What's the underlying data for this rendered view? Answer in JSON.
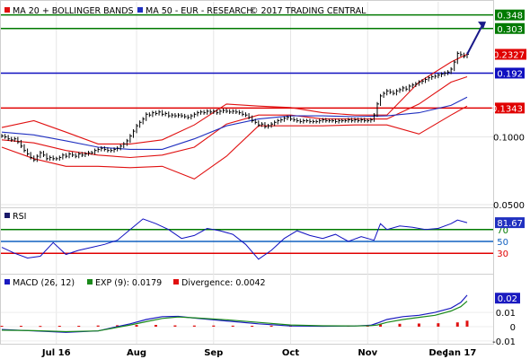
{
  "legend": {
    "main_ma20": "MA 20 + BOLLINGER BANDS",
    "main_ma50": "MA 50 - EUR - RESEARCH",
    "copyright": "© 2017 TRADING CENTRAL",
    "rsi": "RSI",
    "macd": "MACD (26, 12)",
    "exp": "EXP (9): 0.0179",
    "divergence": "Divergence: 0.0042"
  },
  "colors": {
    "price": "#000000",
    "ma20_bands": "#e01010",
    "ma50": "#2030c0",
    "resistance": "#007a00",
    "support_blue": "#1010c0",
    "support_red": "#e00000",
    "price_badge": "#e00000",
    "arrow": "#1a1a8a",
    "rsi_line": "#1010c0",
    "rsi_70": "#007a00",
    "rsi_50": "#1060c0",
    "rsi_30": "#e00000",
    "rsi_badge": "#2030c0",
    "macd_line": "#1a1ac0",
    "exp_line": "#1a8a1a",
    "divergence_bars": "#e01010"
  },
  "chart_data": [
    {
      "type": "line",
      "panel": "price",
      "scale": "log",
      "ylim": [
        0.05,
        0.37
      ],
      "x_ticks": [
        "Jul 16",
        "Aug",
        "Sep",
        "Oct",
        "Nov",
        "Dec",
        "Jan 17"
      ],
      "y_ticks": [
        {
          "value": 0.05,
          "label": "0.0500"
        },
        {
          "value": 0.1,
          "label": "0.1000"
        }
      ],
      "levels": [
        {
          "value": 0.348,
          "label": "0.348",
          "kind": "resistance"
        },
        {
          "value": 0.303,
          "label": "0.303",
          "kind": "resistance"
        },
        {
          "value": 0.192,
          "label": "0.192",
          "kind": "support"
        },
        {
          "value": 0.1343,
          "label": "0.1343",
          "kind": "support"
        }
      ],
      "last_price": {
        "value": 0.2327,
        "label": "0.2327"
      },
      "series": [
        {
          "name": "MA 20 + BOLLINGER BANDS",
          "role": "ma20",
          "x": [
            0,
            10,
            20,
            30,
            40,
            50,
            60,
            70,
            80,
            90,
            100,
            110,
            120,
            130,
            140,
            145
          ],
          "values": [
            0.097,
            0.094,
            0.087,
            0.083,
            0.081,
            0.083,
            0.09,
            0.114,
            0.125,
            0.125,
            0.12,
            0.12,
            0.12,
            0.14,
            0.175,
            0.185
          ]
        },
        {
          "name": "upper band",
          "role": "band",
          "x": [
            0,
            10,
            20,
            30,
            40,
            50,
            60,
            70,
            80,
            90,
            100,
            110,
            120,
            130,
            140,
            145
          ],
          "values": [
            0.11,
            0.118,
            0.105,
            0.093,
            0.093,
            0.097,
            0.113,
            0.14,
            0.137,
            0.135,
            0.128,
            0.125,
            0.125,
            0.175,
            0.215,
            0.233
          ]
        },
        {
          "name": "lower band",
          "role": "band",
          "x": [
            0,
            10,
            20,
            30,
            40,
            50,
            60,
            70,
            80,
            90,
            100,
            110,
            120,
            130,
            140,
            145
          ],
          "values": [
            0.09,
            0.08,
            0.074,
            0.074,
            0.073,
            0.074,
            0.065,
            0.082,
            0.112,
            0.112,
            0.112,
            0.113,
            0.113,
            0.103,
            0.125,
            0.137
          ]
        },
        {
          "name": "MA 50",
          "role": "ma50",
          "x": [
            0,
            10,
            20,
            30,
            40,
            50,
            60,
            70,
            80,
            90,
            100,
            110,
            120,
            130,
            140,
            145
          ],
          "values": [
            0.105,
            0.102,
            0.096,
            0.09,
            0.088,
            0.088,
            0.098,
            0.112,
            0.12,
            0.124,
            0.124,
            0.123,
            0.124,
            0.128,
            0.138,
            0.15
          ]
        }
      ],
      "candles": [
        [
          0,
          0.101
        ],
        [
          1,
          0.1
        ],
        [
          2,
          0.098
        ],
        [
          3,
          0.097
        ],
        [
          4,
          0.098
        ],
        [
          5,
          0.095
        ],
        [
          6,
          0.091
        ],
        [
          7,
          0.087
        ],
        [
          8,
          0.084
        ],
        [
          9,
          0.081
        ],
        [
          10,
          0.079
        ],
        [
          11,
          0.082
        ],
        [
          12,
          0.085
        ],
        [
          13,
          0.083
        ],
        [
          14,
          0.08
        ],
        [
          15,
          0.081
        ],
        [
          16,
          0.08
        ],
        [
          17,
          0.08
        ],
        [
          18,
          0.081
        ],
        [
          19,
          0.083
        ],
        [
          20,
          0.082
        ],
        [
          21,
          0.084
        ],
        [
          22,
          0.083
        ],
        [
          23,
          0.082
        ],
        [
          24,
          0.084
        ],
        [
          25,
          0.083
        ],
        [
          26,
          0.084
        ],
        [
          27,
          0.085
        ],
        [
          28,
          0.085
        ],
        [
          29,
          0.087
        ],
        [
          30,
          0.088
        ],
        [
          31,
          0.089
        ],
        [
          32,
          0.088
        ],
        [
          33,
          0.087
        ],
        [
          34,
          0.087
        ],
        [
          35,
          0.088
        ],
        [
          36,
          0.089
        ],
        [
          37,
          0.091
        ],
        [
          38,
          0.093
        ],
        [
          39,
          0.096
        ],
        [
          40,
          0.101
        ],
        [
          41,
          0.106
        ],
        [
          42,
          0.112
        ],
        [
          43,
          0.116
        ],
        [
          44,
          0.12
        ],
        [
          45,
          0.126
        ],
        [
          46,
          0.125
        ],
        [
          47,
          0.128
        ],
        [
          48,
          0.127
        ],
        [
          49,
          0.129
        ],
        [
          50,
          0.126
        ],
        [
          51,
          0.127
        ],
        [
          52,
          0.124
        ],
        [
          53,
          0.125
        ],
        [
          54,
          0.124
        ],
        [
          55,
          0.125
        ],
        [
          56,
          0.124
        ],
        [
          57,
          0.123
        ],
        [
          58,
          0.122
        ],
        [
          59,
          0.124
        ],
        [
          60,
          0.126
        ],
        [
          61,
          0.128
        ],
        [
          62,
          0.129
        ],
        [
          63,
          0.128
        ],
        [
          64,
          0.13
        ],
        [
          65,
          0.129
        ],
        [
          66,
          0.13
        ],
        [
          67,
          0.128
        ],
        [
          68,
          0.13
        ],
        [
          69,
          0.131
        ],
        [
          70,
          0.13
        ],
        [
          71,
          0.129
        ],
        [
          72,
          0.13
        ],
        [
          73,
          0.129
        ],
        [
          74,
          0.128
        ],
        [
          75,
          0.126
        ],
        [
          76,
          0.125
        ],
        [
          77,
          0.122
        ],
        [
          78,
          0.118
        ],
        [
          79,
          0.116
        ],
        [
          80,
          0.113
        ],
        [
          81,
          0.114
        ],
        [
          82,
          0.111
        ],
        [
          83,
          0.112
        ],
        [
          84,
          0.114
        ],
        [
          85,
          0.116
        ],
        [
          86,
          0.118
        ],
        [
          87,
          0.119
        ],
        [
          88,
          0.121
        ],
        [
          89,
          0.122
        ],
        [
          90,
          0.12
        ],
        [
          91,
          0.119
        ],
        [
          92,
          0.118
        ],
        [
          93,
          0.117
        ],
        [
          94,
          0.118
        ],
        [
          95,
          0.118
        ],
        [
          96,
          0.117
        ],
        [
          97,
          0.117
        ],
        [
          98,
          0.117
        ],
        [
          99,
          0.118
        ],
        [
          100,
          0.119
        ],
        [
          101,
          0.118
        ],
        [
          102,
          0.118
        ],
        [
          103,
          0.118
        ],
        [
          104,
          0.117
        ],
        [
          105,
          0.118
        ],
        [
          106,
          0.118
        ],
        [
          107,
          0.118
        ],
        [
          108,
          0.119
        ],
        [
          109,
          0.118
        ],
        [
          110,
          0.119
        ],
        [
          111,
          0.118
        ],
        [
          112,
          0.119
        ],
        [
          113,
          0.118
        ],
        [
          114,
          0.118
        ],
        [
          115,
          0.119
        ],
        [
          116,
          0.125
        ],
        [
          117,
          0.14
        ],
        [
          118,
          0.152
        ],
        [
          119,
          0.156
        ],
        [
          120,
          0.16
        ],
        [
          121,
          0.158
        ],
        [
          122,
          0.156
        ],
        [
          123,
          0.16
        ],
        [
          124,
          0.162
        ],
        [
          125,
          0.165
        ],
        [
          126,
          0.163
        ],
        [
          127,
          0.168
        ],
        [
          128,
          0.17
        ],
        [
          129,
          0.172
        ],
        [
          130,
          0.175
        ],
        [
          131,
          0.177
        ],
        [
          132,
          0.18
        ],
        [
          133,
          0.183
        ],
        [
          134,
          0.185
        ],
        [
          135,
          0.186
        ],
        [
          136,
          0.188
        ],
        [
          137,
          0.19
        ],
        [
          138,
          0.192
        ],
        [
          139,
          0.194
        ],
        [
          140,
          0.2
        ],
        [
          141,
          0.215
        ],
        [
          142,
          0.235
        ],
        [
          143,
          0.232
        ],
        [
          144,
          0.228
        ],
        [
          145,
          0.2327
        ]
      ]
    },
    {
      "type": "line",
      "panel": "rsi",
      "ylim": [
        0,
        100
      ],
      "levels": [
        {
          "value": 70,
          "label": "70"
        },
        {
          "value": 50,
          "label": "50"
        },
        {
          "value": 30,
          "label": "30"
        }
      ],
      "last_value": {
        "value": 81.67,
        "label": "81.67"
      },
      "series": [
        {
          "name": "RSI",
          "x": [
            0,
            4,
            8,
            12,
            16,
            20,
            24,
            28,
            32,
            36,
            40,
            44,
            48,
            52,
            56,
            60,
            64,
            68,
            72,
            76,
            80,
            84,
            88,
            92,
            96,
            100,
            104,
            108,
            112,
            116,
            118,
            120,
            124,
            128,
            132,
            136,
            140,
            142,
            145
          ],
          "values": [
            40,
            30,
            22,
            25,
            48,
            28,
            35,
            40,
            45,
            52,
            70,
            88,
            80,
            70,
            55,
            60,
            72,
            68,
            62,
            45,
            20,
            35,
            55,
            68,
            60,
            55,
            62,
            50,
            58,
            52,
            80,
            70,
            76,
            74,
            70,
            72,
            80,
            86,
            81.67
          ]
        }
      ]
    },
    {
      "type": "line",
      "panel": "macd",
      "ylim": [
        -0.012,
        0.034
      ],
      "y_ticks": [
        {
          "value": 0.01,
          "label": "0.01"
        },
        {
          "value": 0,
          "label": "0"
        },
        {
          "value": -0.01,
          "label": "-0.01"
        }
      ],
      "last_value": {
        "value": 0.02,
        "label": "0.02"
      },
      "series": [
        {
          "name": "MACD (26, 12)",
          "x": [
            0,
            10,
            20,
            30,
            40,
            45,
            50,
            55,
            60,
            70,
            80,
            90,
            100,
            110,
            115,
            117,
            120,
            125,
            130,
            135,
            140,
            143,
            145
          ],
          "values": [
            -0.002,
            -0.003,
            -0.004,
            -0.003,
            0.002,
            0.005,
            0.007,
            0.0072,
            0.006,
            0.004,
            0.002,
            0.0005,
            0.0003,
            0.0005,
            0.001,
            0.0025,
            0.005,
            0.007,
            0.008,
            0.01,
            0.013,
            0.017,
            0.0221
          ]
        },
        {
          "name": "EXP (9): 0.0179",
          "x": [
            0,
            10,
            20,
            30,
            40,
            45,
            50,
            55,
            60,
            70,
            80,
            90,
            100,
            110,
            115,
            117,
            120,
            125,
            130,
            135,
            140,
            143,
            145
          ],
          "values": [
            -0.0025,
            -0.0028,
            -0.0035,
            -0.003,
            0.0012,
            0.0035,
            0.0058,
            0.0068,
            0.0062,
            0.0048,
            0.003,
            0.0012,
            0.0006,
            0.0005,
            0.0007,
            0.0012,
            0.003,
            0.005,
            0.0065,
            0.008,
            0.011,
            0.014,
            0.0179
          ]
        },
        {
          "name": "Divergence: 0.0042",
          "role": "bars",
          "x": [
            0,
            6,
            12,
            18,
            24,
            30,
            36,
            42,
            48,
            54,
            60,
            66,
            72,
            78,
            84,
            90,
            96,
            102,
            108,
            114,
            118,
            124,
            130,
            136,
            142,
            145
          ],
          "values": [
            0.0006,
            0.0006,
            0.0005,
            0.0006,
            0.0006,
            0.0008,
            0.001,
            0.0012,
            0.0012,
            0.0009,
            0.0008,
            0.0008,
            0.0007,
            0.0006,
            0.0007,
            0.0008,
            0.0007,
            0.0006,
            0.0007,
            0.0008,
            0.0015,
            0.002,
            0.0022,
            0.0024,
            0.003,
            0.0042
          ]
        }
      ]
    }
  ]
}
